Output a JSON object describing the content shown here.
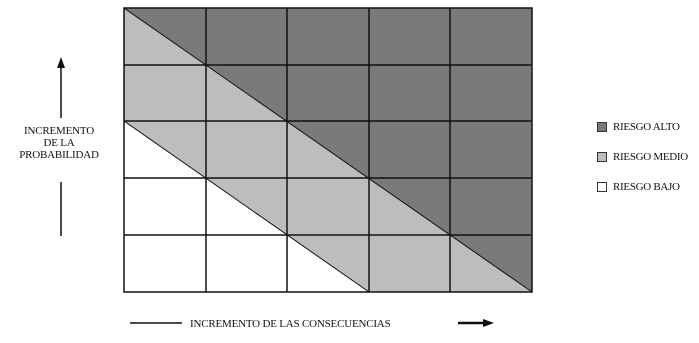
{
  "y_axis": {
    "lines": [
      "INCREMENTO",
      "DE LA",
      "PROBABILIDAD"
    ]
  },
  "x_axis": {
    "label": "INCREMENTO DE LAS CONSECUENCIAS"
  },
  "matrix": {
    "rows": 5,
    "cols": 5,
    "colors": {
      "alto": "#7a7a7a",
      "medio": "#bdbdbd",
      "bajo": "#ffffff",
      "line": "#111111"
    }
  },
  "legend": [
    {
      "label": "RIESGO ALTO",
      "color": "#7a7a7a"
    },
    {
      "label": "RIESGO MEDIO",
      "color": "#bdbdbd"
    },
    {
      "label": "RIESGO BAJO",
      "color": "#ffffff"
    }
  ]
}
